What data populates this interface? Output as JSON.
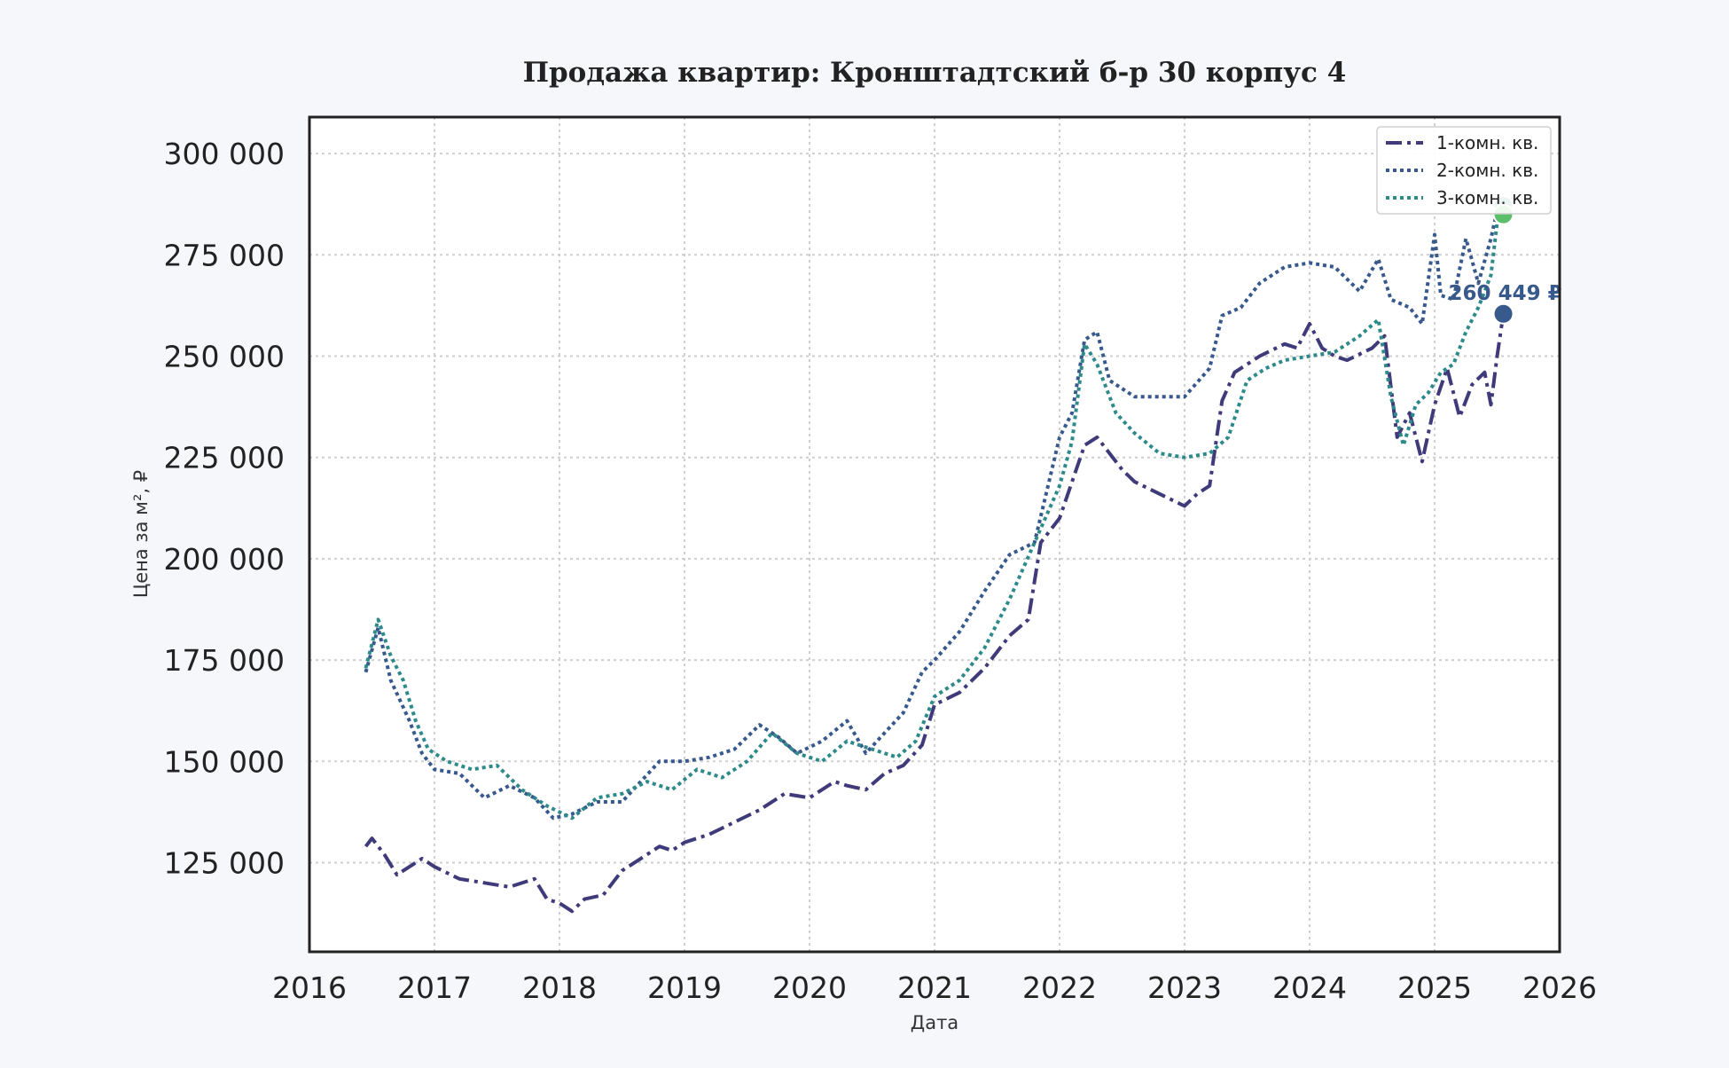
{
  "chart_data": {
    "type": "line",
    "title": "Продажа квартир: Кронштадтский б-р 30 корпус 4",
    "xlabel": "Дата",
    "ylabel": "Цена за м², ₽",
    "xlim": [
      2016.0,
      2026.0
    ],
    "ylim": [
      103000,
      309000
    ],
    "x_ticks": [
      2016,
      2017,
      2018,
      2019,
      2020,
      2021,
      2022,
      2023,
      2024,
      2025,
      2026
    ],
    "y_ticks": [
      125000,
      150000,
      175000,
      200000,
      225000,
      250000,
      275000,
      300000
    ],
    "y_tick_labels": [
      "125 000",
      "150 000",
      "175 000",
      "200 000",
      "225 000",
      "250 000",
      "275 000",
      "300 000"
    ],
    "x_tick_labels": [
      "2016",
      "2017",
      "2018",
      "2019",
      "2020",
      "2021",
      "2022",
      "2023",
      "2024",
      "2025",
      "2026"
    ],
    "grid": true,
    "legend_position": "top-right",
    "series": [
      {
        "name": "1-комн. кв.",
        "color": "#3f3a7a",
        "dash": "dashdot",
        "x": [
          2016.45,
          2016.5,
          2016.6,
          2016.7,
          2016.8,
          2016.9,
          2017.0,
          2017.2,
          2017.4,
          2017.6,
          2017.8,
          2017.9,
          2018.0,
          2018.1,
          2018.2,
          2018.35,
          2018.5,
          2018.65,
          2018.8,
          2018.9,
          2019.0,
          2019.2,
          2019.4,
          2019.6,
          2019.8,
          2020.0,
          2020.2,
          2020.3,
          2020.45,
          2020.6,
          2020.75,
          2020.9,
          2021.0,
          2021.2,
          2021.4,
          2021.6,
          2021.75,
          2021.85,
          2022.0,
          2022.1,
          2022.2,
          2022.3,
          2022.4,
          2022.5,
          2022.6,
          2022.8,
          2023.0,
          2023.1,
          2023.2,
          2023.3,
          2023.4,
          2023.6,
          2023.8,
          2023.9,
          2024.0,
          2024.1,
          2024.2,
          2024.3,
          2024.5,
          2024.6,
          2024.7,
          2024.8,
          2024.9,
          2025.0,
          2025.1,
          2025.2,
          2025.3,
          2025.4,
          2025.45,
          2025.5,
          2025.55
        ],
        "y": [
          129000,
          131000,
          127000,
          122000,
          124000,
          126000,
          124000,
          121000,
          120000,
          119000,
          121000,
          116000,
          115000,
          113000,
          116000,
          117000,
          123000,
          126000,
          129000,
          128000,
          130000,
          132000,
          135000,
          138000,
          142000,
          141000,
          145000,
          144000,
          143000,
          147000,
          149000,
          154000,
          164000,
          167000,
          173000,
          181000,
          185000,
          204000,
          210000,
          219000,
          228000,
          230000,
          226000,
          222000,
          219000,
          216000,
          213000,
          216000,
          218000,
          239000,
          246000,
          250000,
          253000,
          252000,
          258000,
          252000,
          250000,
          249000,
          252000,
          255000,
          230000,
          236000,
          224000,
          238000,
          247000,
          235000,
          243000,
          246000,
          238000,
          250000,
          260449
        ]
      },
      {
        "name": "2-комн. кв.",
        "color": "#38598b",
        "dash": "dotted",
        "x": [
          2016.45,
          2016.55,
          2016.65,
          2016.8,
          2016.9,
          2017.0,
          2017.2,
          2017.4,
          2017.6,
          2017.8,
          2017.95,
          2018.1,
          2018.3,
          2018.5,
          2018.65,
          2018.8,
          2019.0,
          2019.2,
          2019.4,
          2019.6,
          2019.75,
          2019.9,
          2020.1,
          2020.3,
          2020.45,
          2020.6,
          2020.75,
          2020.9,
          2021.0,
          2021.2,
          2021.4,
          2021.6,
          2021.8,
          2022.0,
          2022.1,
          2022.2,
          2022.3,
          2022.4,
          2022.6,
          2022.8,
          2023.0,
          2023.2,
          2023.3,
          2023.45,
          2023.6,
          2023.8,
          2024.0,
          2024.2,
          2024.4,
          2024.55,
          2024.65,
          2024.8,
          2024.9,
          2025.0,
          2025.05,
          2025.15,
          2025.25,
          2025.35,
          2025.45,
          2025.5,
          2025.55
        ],
        "y": [
          172000,
          183000,
          170000,
          160000,
          152000,
          148000,
          147000,
          141000,
          144000,
          141000,
          136000,
          137000,
          140000,
          140000,
          145000,
          150000,
          150000,
          151000,
          153000,
          159000,
          156000,
          152000,
          155000,
          160000,
          152000,
          157000,
          162000,
          172000,
          175000,
          182000,
          192000,
          201000,
          204000,
          230000,
          236000,
          254000,
          256000,
          244000,
          240000,
          240000,
          240000,
          247000,
          260000,
          262000,
          268000,
          272000,
          273000,
          272000,
          266000,
          274000,
          264000,
          262000,
          258000,
          280000,
          265000,
          264000,
          279000,
          268000,
          279000,
          286000,
          287000
        ]
      },
      {
        "name": "3-комн. кв.",
        "color": "#2e8a8a",
        "dash": "dotted",
        "x": [
          2016.45,
          2016.55,
          2016.65,
          2016.75,
          2016.85,
          2016.95,
          2017.1,
          2017.3,
          2017.5,
          2017.7,
          2017.9,
          2018.1,
          2018.3,
          2018.5,
          2018.7,
          2018.9,
          2019.1,
          2019.3,
          2019.5,
          2019.7,
          2019.9,
          2020.1,
          2020.3,
          2020.5,
          2020.7,
          2020.85,
          2021.0,
          2021.2,
          2021.4,
          2021.6,
          2021.8,
          2022.0,
          2022.1,
          2022.2,
          2022.3,
          2022.45,
          2022.6,
          2022.8,
          2023.0,
          2023.2,
          2023.35,
          2023.5,
          2023.65,
          2023.8,
          2024.0,
          2024.2,
          2024.4,
          2024.55,
          2024.65,
          2024.75,
          2024.85,
          2024.95,
          2025.05,
          2025.15,
          2025.25,
          2025.35,
          2025.45,
          2025.5,
          2025.55
        ],
        "y": [
          173000,
          185000,
          176000,
          170000,
          160000,
          153000,
          150000,
          148000,
          149000,
          143000,
          139000,
          136000,
          141000,
          142000,
          145000,
          143000,
          148000,
          146000,
          150000,
          157000,
          152000,
          150000,
          155000,
          153000,
          151000,
          155000,
          166000,
          170000,
          178000,
          190000,
          204000,
          218000,
          229000,
          253000,
          248000,
          236000,
          231000,
          226000,
          225000,
          226000,
          230000,
          244000,
          247000,
          249000,
          250000,
          251000,
          255000,
          259000,
          240000,
          228000,
          238000,
          241000,
          246000,
          248000,
          256000,
          262000,
          270000,
          283000,
          285000
        ]
      }
    ],
    "end_labels": [
      {
        "series": "1-комн. кв.",
        "x": 2025.55,
        "y": 260449,
        "text": "260 449 ₽",
        "color": "#38598b"
      },
      {
        "series": "2-комн. кв.",
        "x": 2025.55,
        "y": 287000,
        "text": "",
        "color": "#2e8a8a"
      },
      {
        "series": "3-комн. кв.",
        "x": 2025.55,
        "y": 285000,
        "text": "",
        "color": "#5bbf6b"
      }
    ]
  }
}
